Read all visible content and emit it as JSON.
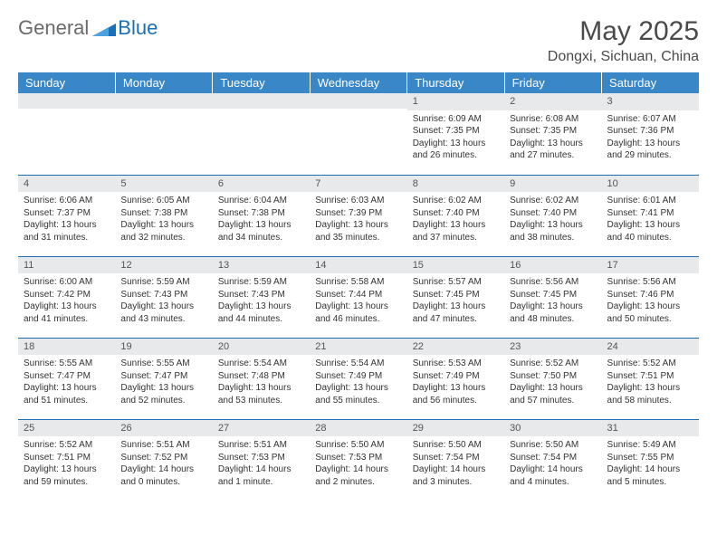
{
  "logo": {
    "general": "General",
    "blue": "Blue"
  },
  "header": {
    "title": "May 2025",
    "location": "Dongxi, Sichuan, China"
  },
  "colors": {
    "header_bg": "#3a87c7",
    "header_text": "#ffffff",
    "daynum_bg": "#e7e9eb",
    "rule": "#1a6fb5",
    "logo_gray": "#6b6b6b",
    "logo_blue": "#1a6fb5"
  },
  "day_headers": [
    "Sunday",
    "Monday",
    "Tuesday",
    "Wednesday",
    "Thursday",
    "Friday",
    "Saturday"
  ],
  "weeks": [
    [
      {
        "empty": true
      },
      {
        "empty": true
      },
      {
        "empty": true
      },
      {
        "empty": true
      },
      {
        "num": "1",
        "sunrise": "Sunrise: 6:09 AM",
        "sunset": "Sunset: 7:35 PM",
        "daylight": "Daylight: 13 hours and 26 minutes."
      },
      {
        "num": "2",
        "sunrise": "Sunrise: 6:08 AM",
        "sunset": "Sunset: 7:35 PM",
        "daylight": "Daylight: 13 hours and 27 minutes."
      },
      {
        "num": "3",
        "sunrise": "Sunrise: 6:07 AM",
        "sunset": "Sunset: 7:36 PM",
        "daylight": "Daylight: 13 hours and 29 minutes."
      }
    ],
    [
      {
        "num": "4",
        "sunrise": "Sunrise: 6:06 AM",
        "sunset": "Sunset: 7:37 PM",
        "daylight": "Daylight: 13 hours and 31 minutes."
      },
      {
        "num": "5",
        "sunrise": "Sunrise: 6:05 AM",
        "sunset": "Sunset: 7:38 PM",
        "daylight": "Daylight: 13 hours and 32 minutes."
      },
      {
        "num": "6",
        "sunrise": "Sunrise: 6:04 AM",
        "sunset": "Sunset: 7:38 PM",
        "daylight": "Daylight: 13 hours and 34 minutes."
      },
      {
        "num": "7",
        "sunrise": "Sunrise: 6:03 AM",
        "sunset": "Sunset: 7:39 PM",
        "daylight": "Daylight: 13 hours and 35 minutes."
      },
      {
        "num": "8",
        "sunrise": "Sunrise: 6:02 AM",
        "sunset": "Sunset: 7:40 PM",
        "daylight": "Daylight: 13 hours and 37 minutes."
      },
      {
        "num": "9",
        "sunrise": "Sunrise: 6:02 AM",
        "sunset": "Sunset: 7:40 PM",
        "daylight": "Daylight: 13 hours and 38 minutes."
      },
      {
        "num": "10",
        "sunrise": "Sunrise: 6:01 AM",
        "sunset": "Sunset: 7:41 PM",
        "daylight": "Daylight: 13 hours and 40 minutes."
      }
    ],
    [
      {
        "num": "11",
        "sunrise": "Sunrise: 6:00 AM",
        "sunset": "Sunset: 7:42 PM",
        "daylight": "Daylight: 13 hours and 41 minutes."
      },
      {
        "num": "12",
        "sunrise": "Sunrise: 5:59 AM",
        "sunset": "Sunset: 7:43 PM",
        "daylight": "Daylight: 13 hours and 43 minutes."
      },
      {
        "num": "13",
        "sunrise": "Sunrise: 5:59 AM",
        "sunset": "Sunset: 7:43 PM",
        "daylight": "Daylight: 13 hours and 44 minutes."
      },
      {
        "num": "14",
        "sunrise": "Sunrise: 5:58 AM",
        "sunset": "Sunset: 7:44 PM",
        "daylight": "Daylight: 13 hours and 46 minutes."
      },
      {
        "num": "15",
        "sunrise": "Sunrise: 5:57 AM",
        "sunset": "Sunset: 7:45 PM",
        "daylight": "Daylight: 13 hours and 47 minutes."
      },
      {
        "num": "16",
        "sunrise": "Sunrise: 5:56 AM",
        "sunset": "Sunset: 7:45 PM",
        "daylight": "Daylight: 13 hours and 48 minutes."
      },
      {
        "num": "17",
        "sunrise": "Sunrise: 5:56 AM",
        "sunset": "Sunset: 7:46 PM",
        "daylight": "Daylight: 13 hours and 50 minutes."
      }
    ],
    [
      {
        "num": "18",
        "sunrise": "Sunrise: 5:55 AM",
        "sunset": "Sunset: 7:47 PM",
        "daylight": "Daylight: 13 hours and 51 minutes."
      },
      {
        "num": "19",
        "sunrise": "Sunrise: 5:55 AM",
        "sunset": "Sunset: 7:47 PM",
        "daylight": "Daylight: 13 hours and 52 minutes."
      },
      {
        "num": "20",
        "sunrise": "Sunrise: 5:54 AM",
        "sunset": "Sunset: 7:48 PM",
        "daylight": "Daylight: 13 hours and 53 minutes."
      },
      {
        "num": "21",
        "sunrise": "Sunrise: 5:54 AM",
        "sunset": "Sunset: 7:49 PM",
        "daylight": "Daylight: 13 hours and 55 minutes."
      },
      {
        "num": "22",
        "sunrise": "Sunrise: 5:53 AM",
        "sunset": "Sunset: 7:49 PM",
        "daylight": "Daylight: 13 hours and 56 minutes."
      },
      {
        "num": "23",
        "sunrise": "Sunrise: 5:52 AM",
        "sunset": "Sunset: 7:50 PM",
        "daylight": "Daylight: 13 hours and 57 minutes."
      },
      {
        "num": "24",
        "sunrise": "Sunrise: 5:52 AM",
        "sunset": "Sunset: 7:51 PM",
        "daylight": "Daylight: 13 hours and 58 minutes."
      }
    ],
    [
      {
        "num": "25",
        "sunrise": "Sunrise: 5:52 AM",
        "sunset": "Sunset: 7:51 PM",
        "daylight": "Daylight: 13 hours and 59 minutes."
      },
      {
        "num": "26",
        "sunrise": "Sunrise: 5:51 AM",
        "sunset": "Sunset: 7:52 PM",
        "daylight": "Daylight: 14 hours and 0 minutes."
      },
      {
        "num": "27",
        "sunrise": "Sunrise: 5:51 AM",
        "sunset": "Sunset: 7:53 PM",
        "daylight": "Daylight: 14 hours and 1 minute."
      },
      {
        "num": "28",
        "sunrise": "Sunrise: 5:50 AM",
        "sunset": "Sunset: 7:53 PM",
        "daylight": "Daylight: 14 hours and 2 minutes."
      },
      {
        "num": "29",
        "sunrise": "Sunrise: 5:50 AM",
        "sunset": "Sunset: 7:54 PM",
        "daylight": "Daylight: 14 hours and 3 minutes."
      },
      {
        "num": "30",
        "sunrise": "Sunrise: 5:50 AM",
        "sunset": "Sunset: 7:54 PM",
        "daylight": "Daylight: 14 hours and 4 minutes."
      },
      {
        "num": "31",
        "sunrise": "Sunrise: 5:49 AM",
        "sunset": "Sunset: 7:55 PM",
        "daylight": "Daylight: 14 hours and 5 minutes."
      }
    ]
  ]
}
